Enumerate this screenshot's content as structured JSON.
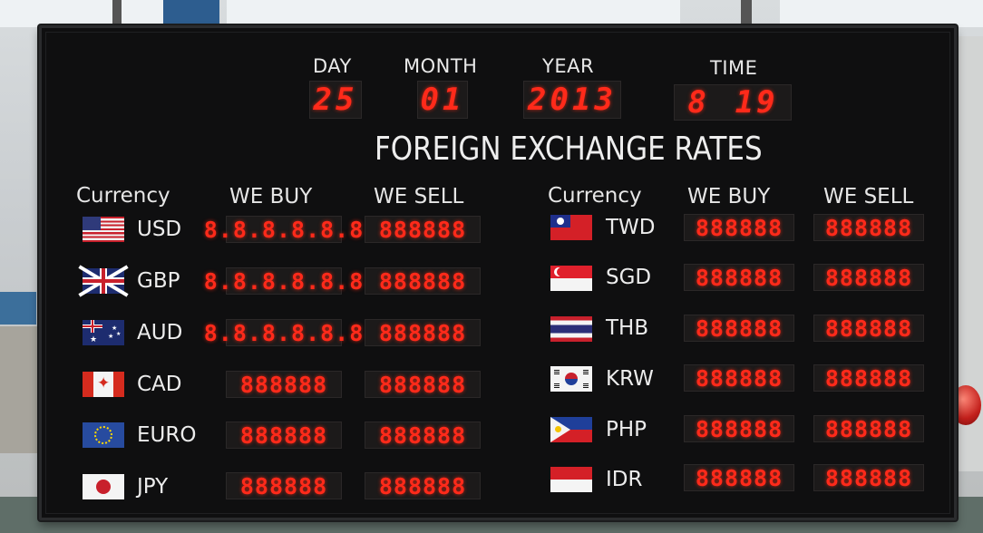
{
  "date_labels": {
    "day": "DAY",
    "month": "MONTH",
    "year": "YEAR",
    "time": "TIME"
  },
  "date_values": {
    "day": "25",
    "month": "01",
    "year": "2013",
    "time_hour": "8",
    "time_minute": "19"
  },
  "title": "FOREIGN EXCHANGE RATES",
  "headers": {
    "currency": "Currency",
    "we_buy": "WE BUY",
    "we_sell": "WE SELL"
  },
  "left_rows": [
    {
      "code": "USD",
      "buy": "8.8.8.8.8.8",
      "sell": "888888",
      "flag": "usa-flag-icon"
    },
    {
      "code": "GBP",
      "buy": "8.8.8.8.8.8",
      "sell": "888888",
      "flag": "uk-flag-icon"
    },
    {
      "code": "AUD",
      "buy": "8.8.8.8.8.8",
      "sell": "888888",
      "flag": "australia-flag-icon"
    },
    {
      "code": "CAD",
      "buy": "888888",
      "sell": "888888",
      "flag": "canada-flag-icon"
    },
    {
      "code": "EURO",
      "buy": "888888",
      "sell": "888888",
      "flag": "eu-flag-icon"
    },
    {
      "code": "JPY",
      "buy": "888888",
      "sell": "888888",
      "flag": "japan-flag-icon"
    }
  ],
  "right_rows": [
    {
      "code": "TWD",
      "buy": "888888",
      "sell": "888888",
      "flag": "taiwan-flag-icon"
    },
    {
      "code": "SGD",
      "buy": "888888",
      "sell": "888888",
      "flag": "singapore-flag-icon"
    },
    {
      "code": "THB",
      "buy": "888888",
      "sell": "888888",
      "flag": "thailand-flag-icon"
    },
    {
      "code": "KRW",
      "buy": "888888",
      "sell": "888888",
      "flag": "korea-flag-icon"
    },
    {
      "code": "PHP",
      "buy": "888888",
      "sell": "888888",
      "flag": "philippines-flag-icon"
    },
    {
      "code": "IDR",
      "buy": "888888",
      "sell": "888888",
      "flag": "indonesia-flag-icon"
    }
  ],
  "colors": {
    "led": "#ff2a1a",
    "board": "#0f0f10",
    "text": "#e9e9e9"
  }
}
